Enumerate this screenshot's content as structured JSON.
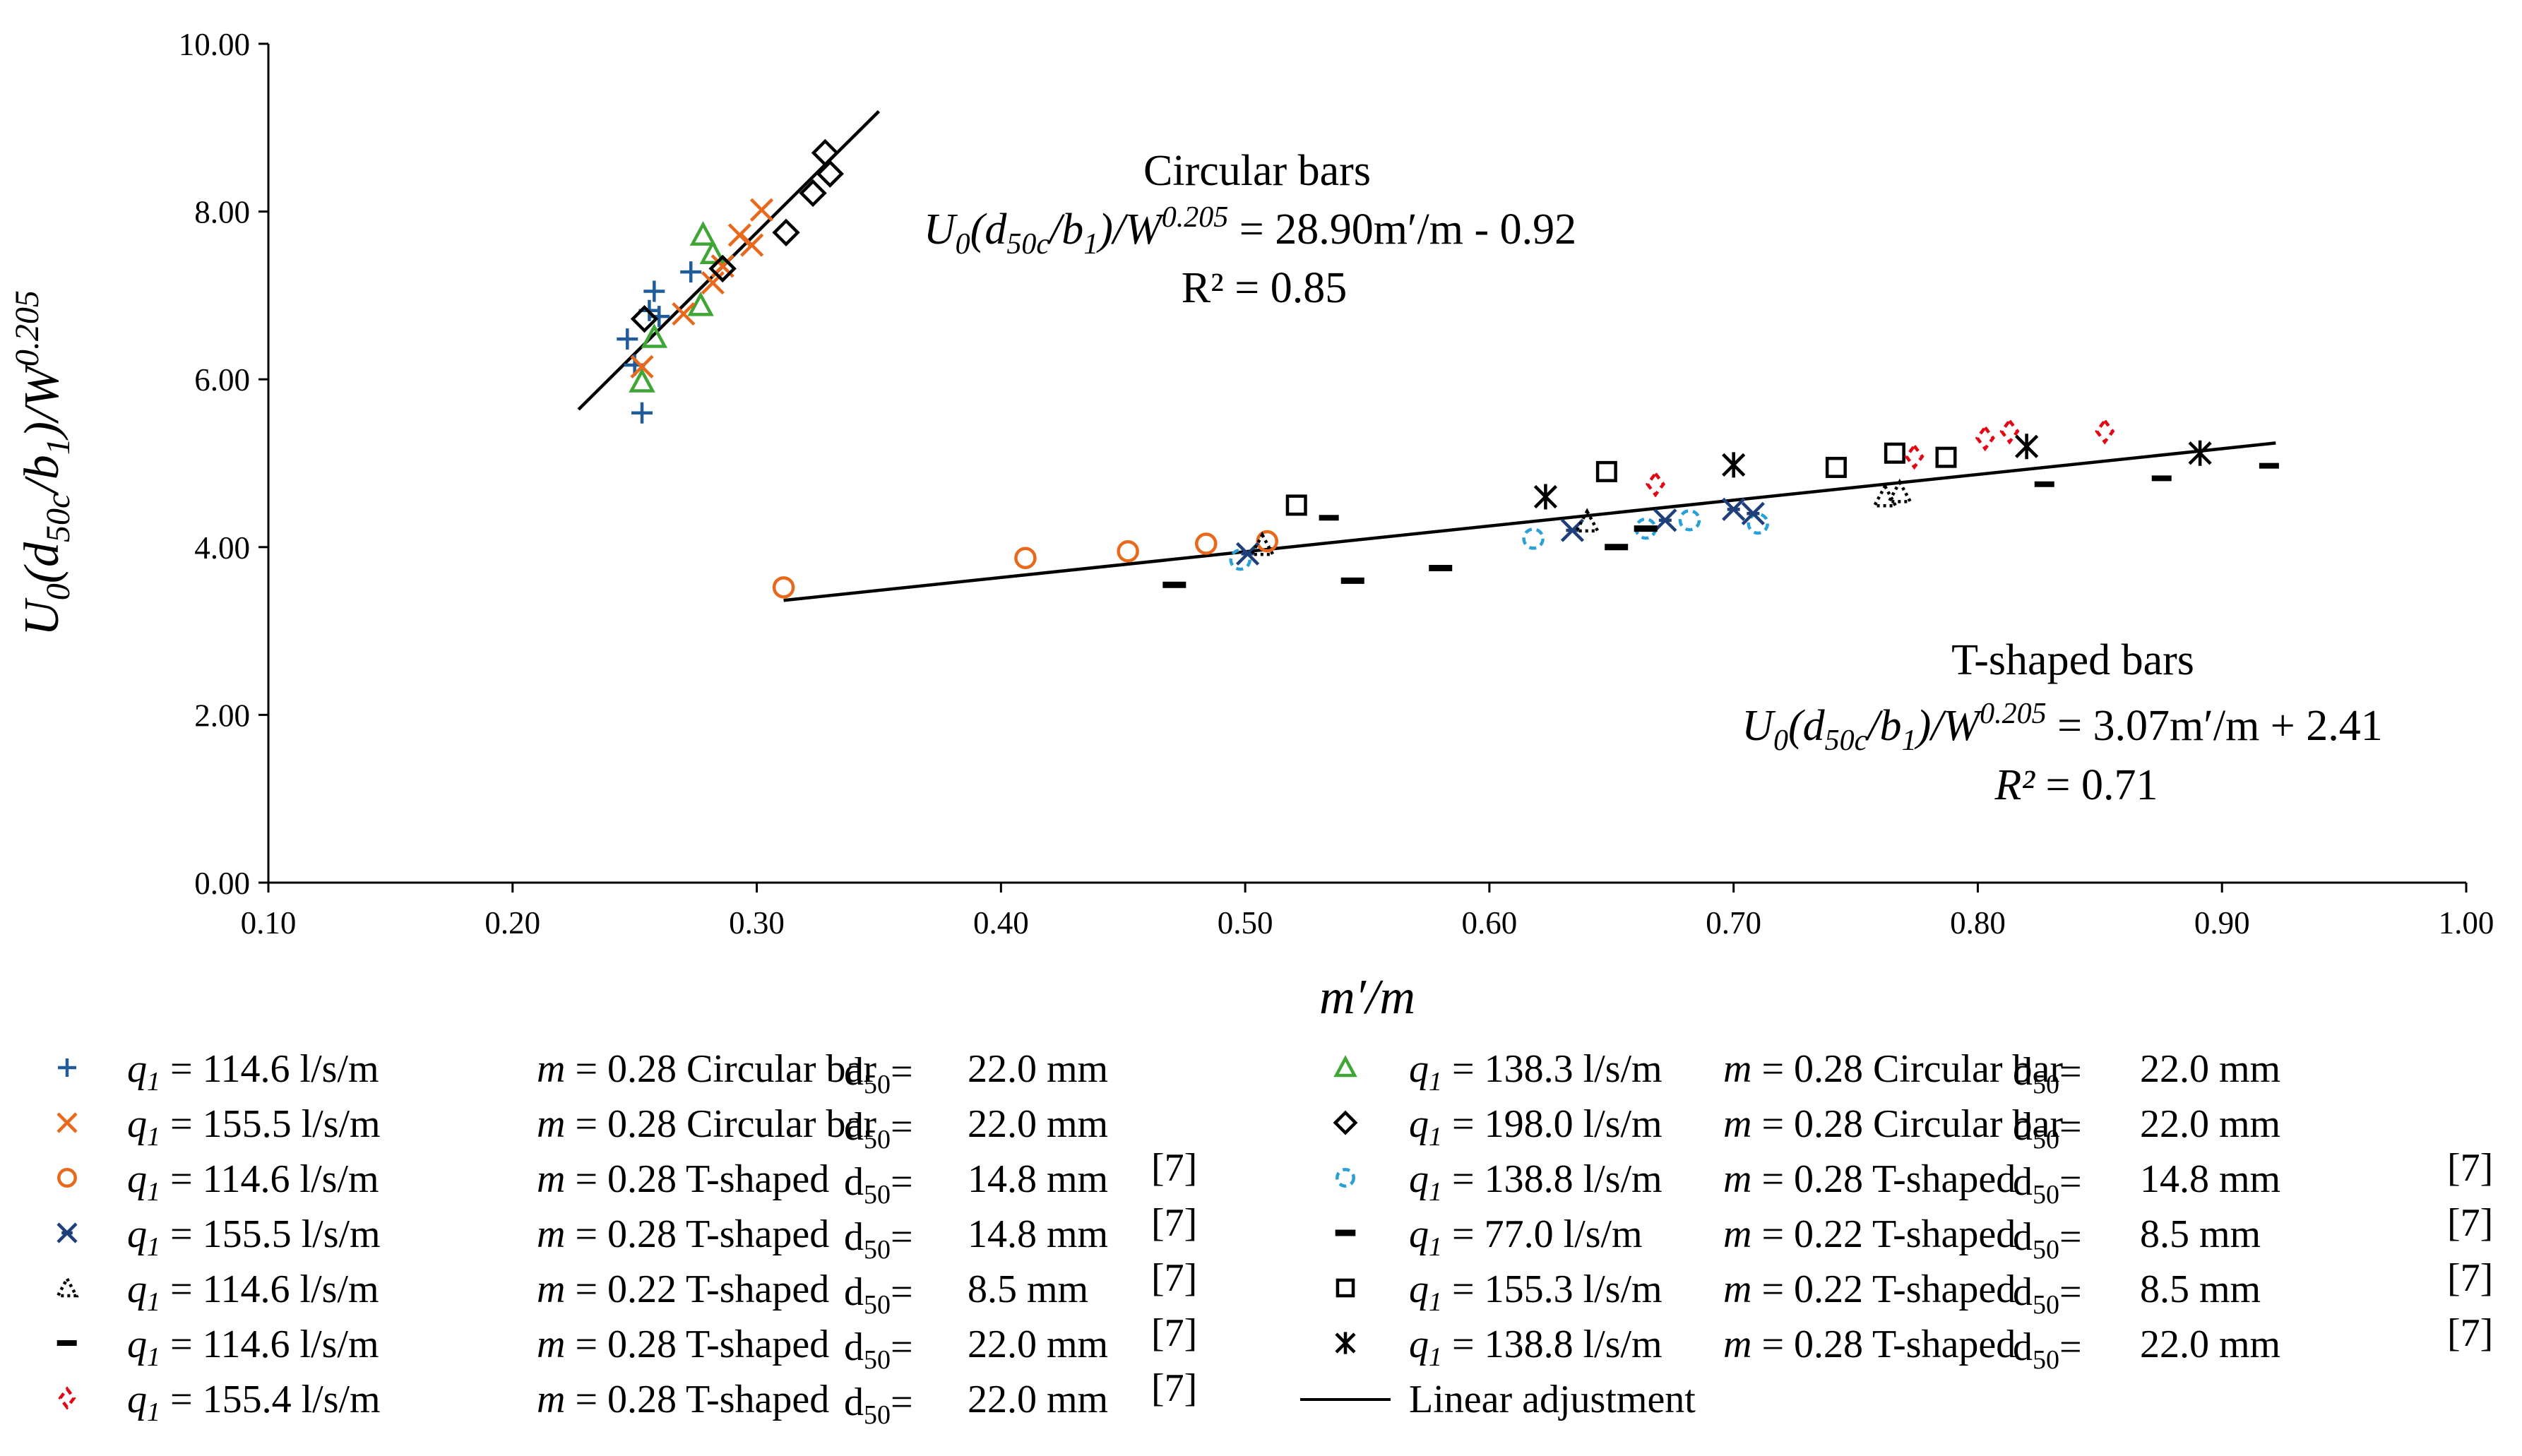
{
  "chart_data": {
    "type": "scatter",
    "x_axis": {
      "label": "m′/m",
      "min": 0.1,
      "max": 1.0,
      "ticks": [
        0.1,
        0.2,
        0.3,
        0.4,
        0.5,
        0.6,
        0.7,
        0.8,
        0.9,
        1.0
      ],
      "tick_labels": [
        "0.10",
        "0.20",
        "0.30",
        "0.40",
        "0.50",
        "0.60",
        "0.70",
        "0.80",
        "0.90",
        "1.00"
      ]
    },
    "y_axis": {
      "label": "U0(d50c/b1)/W^0.205",
      "min": 0,
      "max": 10,
      "ticks": [
        0,
        2,
        4,
        6,
        8,
        10
      ],
      "tick_labels": [
        "0.00",
        "2.00",
        "4.00",
        "6.00",
        "8.00",
        "10.00"
      ]
    },
    "grid": false,
    "legend_position": "bottom",
    "series": [
      {
        "name": "q1 = 114.6 l/s/m m = 0.28 Circular bar d50= 22.0 mm",
        "marker": "plus",
        "color": "#1F5C99",
        "points": [
          [
            0.253,
            5.6
          ],
          [
            0.247,
            6.48
          ],
          [
            0.25,
            6.17
          ],
          [
            0.256,
            6.82
          ],
          [
            0.258,
            7.05
          ],
          [
            0.273,
            7.28
          ],
          [
            0.26,
            6.75
          ]
        ]
      },
      {
        "name": "q1 = 138.3 l/s/m m = 0.28 Circular bar d50= 22.0 mm",
        "marker": "triangle",
        "color": "#3FA535",
        "points": [
          [
            0.253,
            5.97
          ],
          [
            0.258,
            6.5
          ],
          [
            0.277,
            6.88
          ],
          [
            0.278,
            7.72
          ],
          [
            0.282,
            7.5
          ]
        ]
      },
      {
        "name": "q1 = 155.5 l/s/m m = 0.28 Circular bar d50= 22.0 mm",
        "marker": "x",
        "color": "#E8691C",
        "points": [
          [
            0.253,
            6.15
          ],
          [
            0.27,
            6.78
          ],
          [
            0.282,
            7.15
          ],
          [
            0.286,
            7.35
          ],
          [
            0.293,
            7.72
          ],
          [
            0.298,
            7.6
          ],
          [
            0.302,
            8.02
          ]
        ]
      },
      {
        "name": "q1 = 198.0 l/s/m m = 0.28 Circular bar d50= 22.0 mm",
        "marker": "diamond",
        "color": "#000000",
        "points": [
          [
            0.254,
            6.72
          ],
          [
            0.286,
            7.32
          ],
          [
            0.312,
            7.75
          ],
          [
            0.323,
            8.22
          ],
          [
            0.328,
            8.7
          ],
          [
            0.33,
            8.45
          ]
        ]
      },
      {
        "name": "q1 = 114.6 l/s/m m = 0.28 T-shaped d50= 14.8 mm [7]",
        "marker": "circle",
        "color": "#E8691C",
        "points": [
          [
            0.311,
            3.52
          ],
          [
            0.41,
            3.87
          ],
          [
            0.452,
            3.95
          ],
          [
            0.484,
            4.04
          ],
          [
            0.509,
            4.07
          ]
        ]
      },
      {
        "name": "q1 = 138.8 l/s/m m = 0.28 T-shaped d50= 14.8 mm [7]",
        "marker": "dashedcircle",
        "color": "#29A0D8",
        "points": [
          [
            0.498,
            3.85
          ],
          [
            0.618,
            4.1
          ],
          [
            0.664,
            4.22
          ],
          [
            0.682,
            4.32
          ],
          [
            0.71,
            4.28
          ]
        ]
      },
      {
        "name": "q1 = 155.5 l/s/m m = 0.28 T-shaped d50= 14.8 mm [7]",
        "marker": "starx",
        "color": "#1F3F7A",
        "points": [
          [
            0.501,
            3.92
          ],
          [
            0.634,
            4.2
          ],
          [
            0.672,
            4.32
          ],
          [
            0.7,
            4.45
          ],
          [
            0.708,
            4.4
          ]
        ]
      },
      {
        "name": "q1 = 77.0 l/s/m m = 0.22 T-shaped d50= 8.5 mm [7]",
        "marker": "dash",
        "color": "#000000",
        "points": [
          [
            0.471,
            3.55
          ],
          [
            0.544,
            3.6
          ],
          [
            0.58,
            3.75
          ],
          [
            0.652,
            4.0
          ],
          [
            0.664,
            4.22
          ]
        ]
      },
      {
        "name": "q1 = 114.6 l/s/m m = 0.22 T-shaped d50= 8.5 mm [7]",
        "marker": "dottedtriangle",
        "color": "#000000",
        "points": [
          [
            0.507,
            4.02
          ],
          [
            0.64,
            4.3
          ],
          [
            0.762,
            4.6
          ],
          [
            0.768,
            4.65
          ]
        ]
      },
      {
        "name": "q1 = 155.3 l/s/m m = 0.22 T-shaped d50= 8.5 mm [7]",
        "marker": "square",
        "color": "#000000",
        "points": [
          [
            0.521,
            4.5
          ],
          [
            0.648,
            4.9
          ],
          [
            0.742,
            4.95
          ],
          [
            0.766,
            5.12
          ],
          [
            0.787,
            5.07
          ]
        ]
      },
      {
        "name": "q1 = 114.6 l/s/m m = 0.28 T-shaped d50= 22.0 mm [7]",
        "marker": "brokendash",
        "color": "#000000",
        "points": [
          [
            0.535,
            4.35
          ],
          [
            0.828,
            4.75
          ],
          [
            0.876,
            4.82
          ],
          [
            0.92,
            4.97
          ]
        ]
      },
      {
        "name": "q1 = 138.8 l/s/m m = 0.28 T-shaped d50= 22.0 mm [7]",
        "marker": "asterisk",
        "color": "#000000",
        "points": [
          [
            0.623,
            4.6
          ],
          [
            0.7,
            4.98
          ],
          [
            0.82,
            5.2
          ],
          [
            0.891,
            5.12
          ]
        ]
      },
      {
        "name": "q1 = 155.4 l/s/m m = 0.28 T-shaped d50= 22.0 mm [7]",
        "marker": "reddiamond",
        "color": "#E30613",
        "points": [
          [
            0.668,
            4.75
          ],
          [
            0.774,
            5.08
          ],
          [
            0.803,
            5.3
          ],
          [
            0.813,
            5.38
          ],
          [
            0.852,
            5.38
          ]
        ]
      }
    ],
    "trendlines": [
      {
        "name": "Circular bars",
        "slope": 28.9,
        "intercept": -0.92,
        "x_range": [
          0.227,
          0.35
        ]
      },
      {
        "name": "T-shaped bars",
        "slope": 3.07,
        "intercept": 2.41,
        "x_range": [
          0.311,
          0.922
        ]
      }
    ],
    "annotations": {
      "circular": {
        "title": "Circular bars",
        "eq_lhs": "U0(d50c/b1)/W0.205",
        "eq_rhs": "= 28.90m′/m - 0.92",
        "r2": "R² = 0.85"
      },
      "tshaped": {
        "title": "T-shaped bars",
        "eq_lhs": "U0(d50c/b1)/W0.205",
        "eq_rhs": "= 3.07m′/m + 2.41",
        "r2": "R² = 0.71"
      }
    },
    "legend": [
      {
        "marker": "plus",
        "color": "#1F5C99",
        "text": "q1 = 114.6 l/s/m m = 0.28 Circular bar d50= 22.0 mm",
        "q": "= 114.6 l/s/m",
        "m": "= 0.28 Circular bar",
        "d": "22.0 mm",
        "ref": ""
      },
      {
        "marker": "x",
        "color": "#E8691C",
        "text": "q1 = 155.5 l/s/m m = 0.28 Circular bar d50= 22.0 mm",
        "q": "= 155.5 l/s/m",
        "m": "= 0.28 Circular bar",
        "d": "22.0 mm",
        "ref": ""
      },
      {
        "marker": "circle",
        "color": "#E8691C",
        "text": "q1 = 114.6 l/s/m m = 0.28 T-shaped d50= 14.8 mm [7]",
        "q": "= 114.6 l/s/m",
        "m": "= 0.28 T-shaped",
        "d": "14.8 mm",
        "ref": "[7]"
      },
      {
        "marker": "starx",
        "color": "#1F3F7A",
        "text": "q1 = 155.5 l/s/m m = 0.28 T-shaped d50= 14.8 mm [7]",
        "q": "= 155.5 l/s/m",
        "m": "= 0.28 T-shaped",
        "d": "14.8 mm",
        "ref": "[7]"
      },
      {
        "marker": "dottedtriangle",
        "color": "#000000",
        "text": "q1 = 114.6 l/s/m m = 0.22 T-shaped d50= 8.5 mm [7]",
        "q": "= 114.6 l/s/m",
        "m": "= 0.22 T-shaped",
        "d": "8.5 mm",
        "ref": "[7]"
      },
      {
        "marker": "brokendash",
        "color": "#000000",
        "text": "q1 = 114.6 l/s/m m = 0.28 T-shaped d50= 22.0 mm [7]",
        "q": "= 114.6 l/s/m",
        "m": "= 0.28 T-shaped",
        "d": "22.0 mm",
        "ref": "[7]"
      },
      {
        "marker": "reddiamond",
        "color": "#E30613",
        "text": "q1 = 155.4 l/s/m m = 0.28 T-shaped d50= 22.0 mm [7]",
        "q": "= 155.4 l/s/m",
        "m": "= 0.28 T-shaped",
        "d": "22.0 mm",
        "ref": "[7]"
      },
      {
        "marker": "triangle",
        "color": "#3FA535",
        "text": "q1 = 138.3 l/s/m m = 0.28 Circular bar d50= 22.0 mm",
        "q": "= 138.3 l/s/m",
        "m": "= 0.28 Circular bar",
        "d": "22.0 mm",
        "ref": ""
      },
      {
        "marker": "diamond",
        "color": "#000000",
        "text": "q1 = 198.0 l/s/m m = 0.28 Circular bar d50= 22.0 mm",
        "q": "= 198.0 l/s/m",
        "m": "= 0.28 Circular bar",
        "d": "22.0 mm",
        "ref": ""
      },
      {
        "marker": "dashedcircle",
        "color": "#29A0D8",
        "text": "q1 = 138.8 l/s/m m = 0.28 T-shaped d50= 14.8 mm [7]",
        "q": "= 138.8 l/s/m",
        "m": "= 0.28 T-shaped",
        "d": "14.8 mm",
        "ref": "[7]"
      },
      {
        "marker": "dash",
        "color": "#000000",
        "text": "q1 = 77.0 l/s/m m = 0.22 T-shaped d50= 8.5 mm [7]",
        "q": "= 77.0 l/s/m",
        "m": "= 0.22 T-shaped",
        "d": "8.5 mm",
        "ref": "[7]"
      },
      {
        "marker": "square",
        "color": "#000000",
        "text": "q1 = 155.3 l/s/m m = 0.22 T-shaped d50= 8.5 mm [7]",
        "q": "= 155.3 l/s/m",
        "m": "= 0.22 T-shaped",
        "d": "8.5 mm",
        "ref": "[7]"
      },
      {
        "marker": "asterisk",
        "color": "#000000",
        "text": "q1 = 138.8 l/s/m m = 0.28 T-shaped d50= 22.0 mm [7]",
        "q": "= 138.8 l/s/m",
        "m": "= 0.28 T-shaped",
        "d": "22.0 mm",
        "ref": "[7]"
      },
      {
        "marker": "line",
        "color": "#000000",
        "text": "Linear adjustment",
        "q": "",
        "m": "",
        "d": "",
        "ref": ""
      }
    ]
  }
}
